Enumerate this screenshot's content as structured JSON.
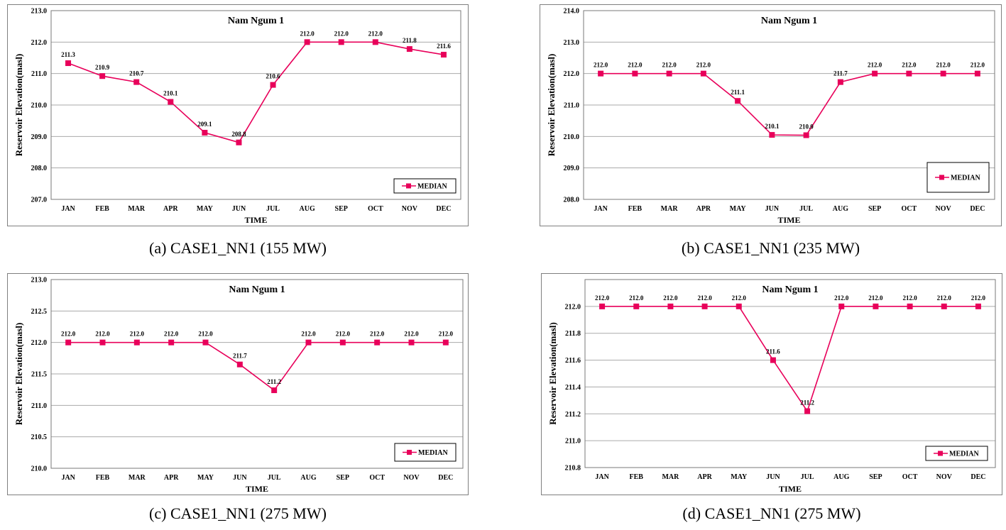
{
  "figures": [
    {
      "caption": "(a) CASE1_NN1 (155 MW)"
    },
    {
      "caption": "(b) CASE1_NN1 (235 MW)"
    },
    {
      "caption": "(c) CASE1_NN1 (275 MW)"
    },
    {
      "caption": "(d) CASE1_NN1 (275 MW)"
    }
  ],
  "colors": {
    "series": "#e8005a",
    "grid": "#aaaaaa",
    "frame": "#7f7f7f"
  },
  "chart_data": [
    {
      "type": "line",
      "title": "Nam Ngum 1",
      "xlabel": "TIME",
      "ylabel": "Reservoir Elevation(masl)",
      "categories": [
        "JAN",
        "FEB",
        "MAR",
        "APR",
        "MAY",
        "JUN",
        "JUL",
        "AUG",
        "SEP",
        "OCT",
        "NOV",
        "DEC"
      ],
      "series": [
        {
          "name": "MEDIAN",
          "values": [
            211.33,
            210.92,
            210.73,
            210.1,
            209.12,
            208.81,
            210.64,
            212.0,
            212.0,
            212.0,
            211.78,
            211.6
          ],
          "labels": [
            "211.3",
            "210.9",
            "210.7",
            "210.1",
            "209.1",
            "208.8",
            "210.6",
            "212.0",
            "212.0",
            "212.0",
            "211.8",
            "211.6"
          ]
        }
      ],
      "ylim": [
        207.0,
        213.0
      ],
      "yticks": [
        207.0,
        208.0,
        209.0,
        210.0,
        211.0,
        212.0,
        213.0
      ],
      "ytick_labels": [
        "207.0",
        "208.0",
        "209.0",
        "210.0",
        "211.0",
        "212.0",
        "213.0"
      ],
      "grid": true,
      "legend": "bottom-right"
    },
    {
      "type": "line",
      "title": "Nam Ngum 1",
      "xlabel": "TIME",
      "ylabel": "Reservoir Elevation(masl)",
      "categories": [
        "JAN",
        "FEB",
        "MAR",
        "APR",
        "MAY",
        "JUN",
        "JUL",
        "AUG",
        "SEP",
        "OCT",
        "NOV",
        "DEC"
      ],
      "series": [
        {
          "name": "MEDIAN",
          "values": [
            212.0,
            212.0,
            212.0,
            212.0,
            211.13,
            210.05,
            210.04,
            211.73,
            212.0,
            212.0,
            212.0,
            212.0
          ],
          "labels": [
            "212.0",
            "212.0",
            "212.0",
            "212.0",
            "211.1",
            "210.1",
            "210.0",
            "211.7",
            "212.0",
            "212.0",
            "212.0",
            "212.0"
          ]
        }
      ],
      "ylim": [
        208.0,
        214.0
      ],
      "yticks": [
        208.0,
        209.0,
        210.0,
        211.0,
        212.0,
        213.0,
        214.0
      ],
      "ytick_labels": [
        "208.0",
        "209.0",
        "210.0",
        "211.0",
        "212.0",
        "213.0",
        "214.0"
      ],
      "grid": true,
      "legend": "bottom-right"
    },
    {
      "type": "line",
      "title": "Nam Ngum 1",
      "xlabel": "TIME",
      "ylabel": "Reservoir Elevation(masl)",
      "categories": [
        "JAN",
        "FEB",
        "MAR",
        "APR",
        "MAY",
        "JUN",
        "JUL",
        "AUG",
        "SEP",
        "OCT",
        "NOV",
        "DEC"
      ],
      "series": [
        {
          "name": "MEDIAN",
          "values": [
            212.0,
            212.0,
            212.0,
            212.0,
            212.0,
            211.65,
            211.24,
            212.0,
            212.0,
            212.0,
            212.0,
            212.0
          ],
          "labels": [
            "212.0",
            "212.0",
            "212.0",
            "212.0",
            "212.0",
            "211.7",
            "211.2",
            "212.0",
            "212.0",
            "212.0",
            "212.0",
            "212.0"
          ]
        }
      ],
      "ylim": [
        210.0,
        213.0
      ],
      "yticks": [
        210.0,
        210.5,
        211.0,
        211.5,
        212.0,
        212.5,
        213.0
      ],
      "ytick_labels": [
        "210.0",
        "210.5",
        "211.0",
        "211.5",
        "212.0",
        "212.5",
        "213.0"
      ],
      "grid": true,
      "legend": "bottom-right"
    },
    {
      "type": "line",
      "title": "Nam Ngum 1",
      "xlabel": "TIME",
      "ylabel": "Reservoir Elevation(masl)",
      "categories": [
        "JAN",
        "FEB",
        "MAR",
        "APR",
        "MAY",
        "JUN",
        "JUL",
        "AUG",
        "SEP",
        "OCT",
        "NOV",
        "DEC"
      ],
      "series": [
        {
          "name": "MEDIAN",
          "values": [
            212.0,
            212.0,
            212.0,
            212.0,
            212.0,
            211.6,
            211.22,
            212.0,
            212.0,
            212.0,
            212.0,
            212.0
          ],
          "labels": [
            "212.0",
            "212.0",
            "212.0",
            "212.0",
            "212.0",
            "211.6",
            "211.2",
            "212.0",
            "212.0",
            "212.0",
            "212.0",
            "212.0"
          ]
        }
      ],
      "ylim": [
        210.8,
        212.2
      ],
      "yticks": [
        210.8,
        211.0,
        211.2,
        211.4,
        211.6,
        211.8,
        212.0
      ],
      "ytick_labels": [
        "210.8",
        "211.0",
        "211.2",
        "211.4",
        "211.6",
        "211.8",
        "212.0"
      ],
      "grid": true,
      "legend": "bottom-right"
    }
  ]
}
